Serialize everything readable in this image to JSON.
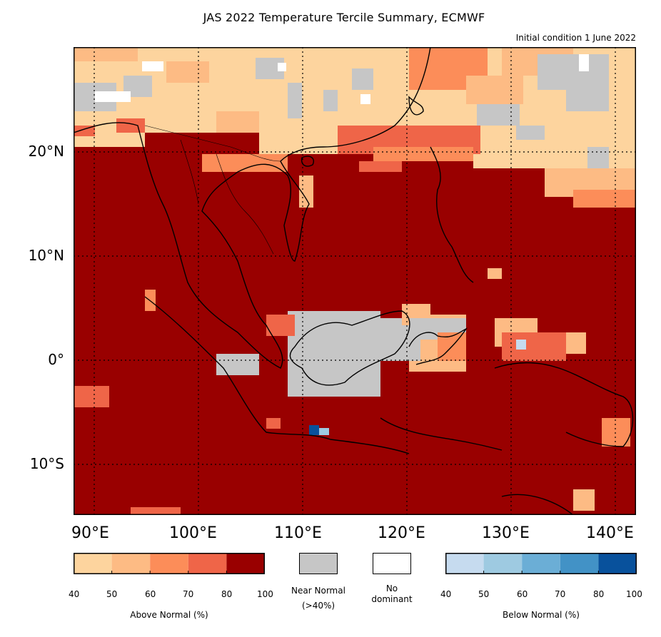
{
  "title": "JAS 2022 Temperature Tercile Summary, ECMWF",
  "subtitle": "Initial condition 1 June 2022",
  "lat_labels": [
    "20°N",
    "10°N",
    "0°",
    "10°S"
  ],
  "lon_labels": [
    "90°E",
    "100°E",
    "110°E",
    "120°E",
    "130°E",
    "140°E"
  ],
  "colors": {
    "above": [
      "#fdd49e",
      "#fdbb84",
      "#fc8d59",
      "#ef6548",
      "#990000"
    ],
    "near": "#c6c6c6",
    "no_dominant": "#ffffff",
    "below": [
      "#c6dbef",
      "#9ecae1",
      "#6baed6",
      "#4292c6",
      "#08519c"
    ]
  },
  "legend": {
    "above_ticks": [
      "40",
      "50",
      "60",
      "70",
      "80",
      "100"
    ],
    "above_label": "Above Normal (%)",
    "near_label": "Near Normal\n(>40%)",
    "no_dominant_label": "No\ndominant",
    "below_ticks": [
      "40",
      "50",
      "60",
      "70",
      "80",
      "100"
    ],
    "below_label": "Below Normal (%)"
  }
}
